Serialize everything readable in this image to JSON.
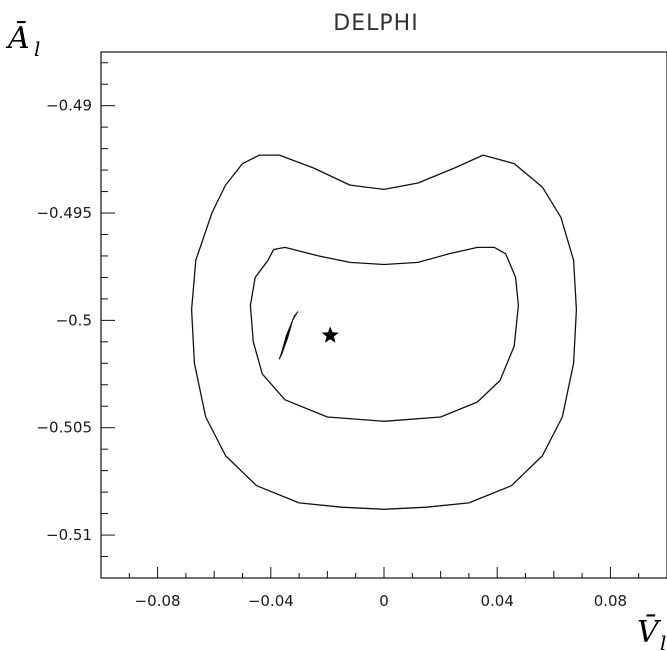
{
  "chart_data": {
    "type": "contour",
    "title": "DELPHI",
    "xlabel": {
      "symbol": "V̄",
      "subscript": "l"
    },
    "ylabel": {
      "symbol": "Ā",
      "subscript": "l"
    },
    "xlim": [
      -0.1,
      0.1
    ],
    "ylim": [
      -0.512,
      -0.4875
    ],
    "x_ticks": [
      {
        "value": -0.08,
        "label": "−0.08"
      },
      {
        "value": -0.04,
        "label": "−0.04"
      },
      {
        "value": 0,
        "label": "0"
      },
      {
        "value": 0.04,
        "label": "0.04"
      },
      {
        "value": 0.08,
        "label": "0.08"
      }
    ],
    "y_ticks": [
      {
        "value": -0.49,
        "label": "−0.49"
      },
      {
        "value": -0.495,
        "label": "−0.495"
      },
      {
        "value": -0.5,
        "label": "−0.5"
      },
      {
        "value": -0.505,
        "label": "−0.505"
      },
      {
        "value": -0.51,
        "label": "−0.51"
      }
    ],
    "x_minor_step": 0.01,
    "y_minor_step": 0.001,
    "grid": false,
    "series": [
      {
        "kind": "outer-contour",
        "points": [
          [
            -0.0608,
            -0.495
          ],
          [
            -0.056,
            -0.4937
          ],
          [
            -0.05,
            -0.4927
          ],
          [
            -0.044,
            -0.4923
          ],
          [
            -0.037,
            -0.4923
          ],
          [
            -0.025,
            -0.4929
          ],
          [
            -0.012,
            -0.4937
          ],
          [
            0.0,
            -0.4939
          ],
          [
            0.012,
            -0.4936
          ],
          [
            0.025,
            -0.4929
          ],
          [
            0.035,
            -0.4923
          ],
          [
            0.046,
            -0.4927
          ],
          [
            0.056,
            -0.4938
          ],
          [
            0.0625,
            -0.4952
          ],
          [
            0.067,
            -0.4972
          ],
          [
            0.068,
            -0.4995
          ],
          [
            0.067,
            -0.502
          ],
          [
            0.063,
            -0.5045
          ],
          [
            0.056,
            -0.5063
          ],
          [
            0.045,
            -0.5077
          ],
          [
            0.03,
            -0.5085
          ],
          [
            0.015,
            -0.5087
          ],
          [
            0.0,
            -0.5088
          ],
          [
            -0.015,
            -0.5087
          ],
          [
            -0.03,
            -0.5085
          ],
          [
            -0.045,
            -0.5077
          ],
          [
            -0.056,
            -0.5063
          ],
          [
            -0.063,
            -0.5045
          ],
          [
            -0.067,
            -0.502
          ],
          [
            -0.068,
            -0.4995
          ],
          [
            -0.0665,
            -0.4972
          ],
          [
            -0.0608,
            -0.495
          ]
        ]
      },
      {
        "kind": "inner-contour",
        "points": [
          [
            -0.041,
            -0.4972
          ],
          [
            -0.039,
            -0.4967
          ],
          [
            -0.035,
            -0.4966
          ],
          [
            -0.023,
            -0.497
          ],
          [
            -0.012,
            -0.4973
          ],
          [
            0.0,
            -0.4974
          ],
          [
            0.012,
            -0.4973
          ],
          [
            0.023,
            -0.4969
          ],
          [
            0.033,
            -0.4966
          ],
          [
            0.039,
            -0.4966
          ],
          [
            0.043,
            -0.4969
          ],
          [
            0.0465,
            -0.498
          ],
          [
            0.0475,
            -0.4993
          ],
          [
            0.046,
            -0.5012
          ],
          [
            0.041,
            -0.5028
          ],
          [
            0.033,
            -0.5038
          ],
          [
            0.02,
            -0.5045
          ],
          [
            0.0,
            -0.5047
          ],
          [
            -0.02,
            -0.5045
          ],
          [
            -0.035,
            -0.5037
          ],
          [
            -0.043,
            -0.5025
          ],
          [
            -0.0462,
            -0.501
          ],
          [
            -0.0472,
            -0.4993
          ],
          [
            -0.0455,
            -0.498
          ],
          [
            -0.041,
            -0.4972
          ]
        ]
      },
      {
        "kind": "filled-region",
        "points": [
          [
            -0.0305,
            -0.4996
          ],
          [
            -0.0317,
            -0.4998
          ],
          [
            -0.0345,
            -0.5007
          ],
          [
            -0.0362,
            -0.5015
          ],
          [
            -0.037,
            -0.5018
          ],
          [
            -0.0362,
            -0.5016
          ],
          [
            -0.034,
            -0.5008
          ],
          [
            -0.0323,
            -0.5
          ],
          [
            -0.0305,
            -0.4996
          ]
        ]
      }
    ],
    "marker": {
      "symbol": "star",
      "x": -0.019,
      "y": -0.5007
    }
  }
}
